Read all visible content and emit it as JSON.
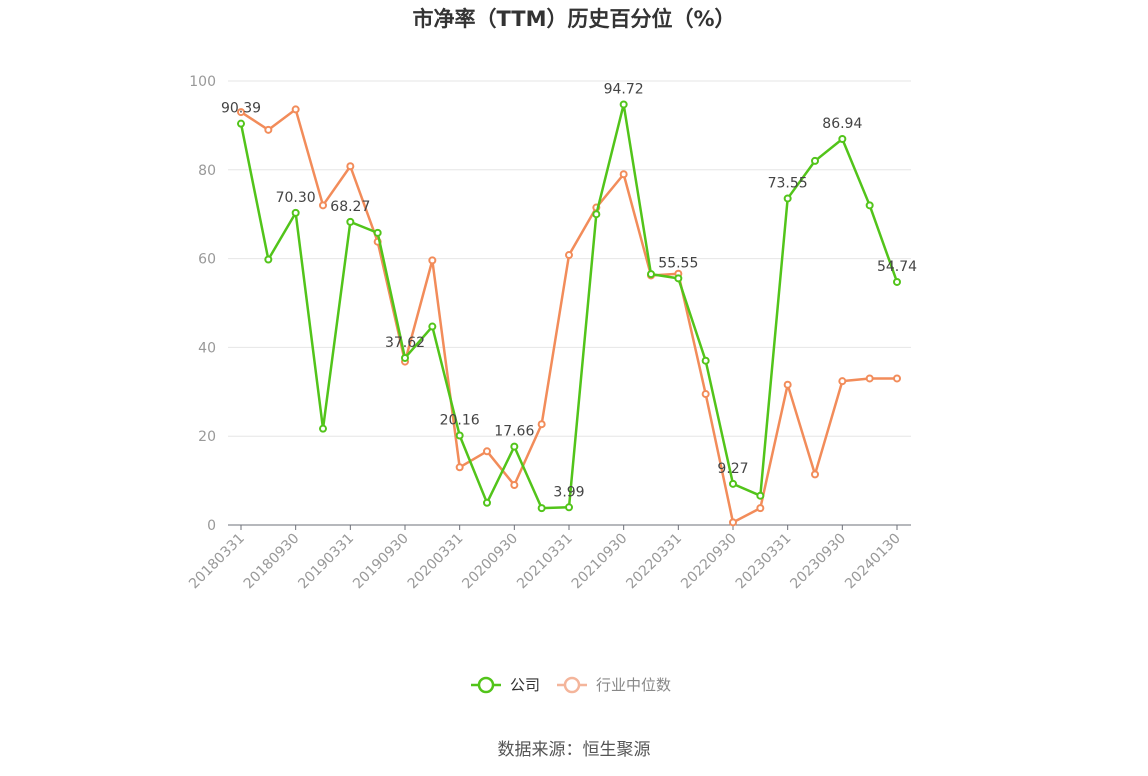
{
  "chart_data": {
    "type": "line",
    "title": "市净率（TTM）历史百分位（%）",
    "source": "数据来源：恒生聚源",
    "ylim": [
      0,
      100
    ],
    "y_ticks": [
      0,
      20,
      40,
      60,
      80,
      100
    ],
    "grid": true,
    "legend_position": "bottom-center",
    "x": [
      "20180331",
      "20180630",
      "20180930",
      "20181231",
      "20190331",
      "20190630",
      "20190930",
      "20191231",
      "20200331",
      "20200630",
      "20200930",
      "20201231",
      "20210331",
      "20210630",
      "20210930",
      "20211231",
      "20220331",
      "20220630",
      "20220930",
      "20221231",
      "20230331",
      "20230630",
      "20230930",
      "20231231",
      "20240130"
    ],
    "x_tick_labels": [
      "20180331",
      "20180930",
      "20190331",
      "20190930",
      "20200331",
      "20200930",
      "20210331",
      "20210930",
      "20220331",
      "20220930",
      "20230331",
      "20230930",
      "20240130"
    ],
    "series": [
      {
        "name": "公司",
        "color": "#52c41a",
        "values": [
          90.39,
          59.8,
          70.3,
          21.7,
          68.27,
          65.8,
          37.62,
          44.7,
          20.16,
          5.0,
          17.66,
          3.8,
          3.99,
          70.0,
          94.72,
          56.5,
          55.55,
          37.0,
          9.27,
          6.6,
          73.55,
          82.0,
          86.94,
          72.0,
          54.74
        ],
        "labels": {
          "0": "90.39",
          "2": "70.30",
          "4": "68.27",
          "6": "37.62",
          "8": "20.16",
          "10": "17.66",
          "12": "3.99",
          "14": "94.72",
          "16": "55.55",
          "18": "9.27",
          "20": "73.55",
          "22": "86.94",
          "24": "54.74"
        }
      },
      {
        "name": "行业中位数",
        "color": "#f28c5a",
        "values": [
          93.0,
          89.0,
          93.6,
          72.0,
          80.8,
          63.8,
          36.8,
          59.6,
          13.0,
          16.6,
          9.0,
          22.7,
          60.8,
          71.5,
          79.0,
          56.2,
          56.6,
          29.5,
          0.6,
          3.8,
          31.6,
          11.4,
          32.4,
          33.0,
          33.0
        ]
      }
    ]
  }
}
